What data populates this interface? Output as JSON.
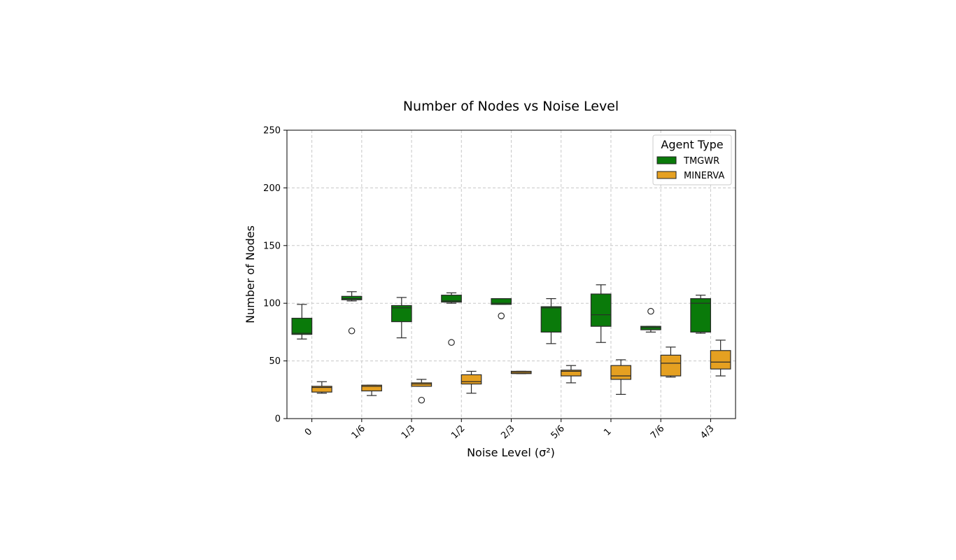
{
  "chart_data": {
    "type": "box",
    "title": "Number of Nodes vs Noise Level",
    "xlabel": "Noise Level (σ²)",
    "ylabel": "Number of Nodes",
    "ylim": [
      0,
      250
    ],
    "yticks": [
      0,
      50,
      100,
      150,
      200,
      250
    ],
    "grid": true,
    "legend": {
      "title": "Agent Type",
      "placement": "top-right"
    },
    "categories": [
      "0",
      "1/6",
      "1/3",
      "1/2",
      "2/3",
      "5/6",
      "1",
      "7/6",
      "4/3"
    ],
    "series": [
      {
        "name": "TMGWR",
        "color": "#0a7a0a",
        "boxes": [
          {
            "whisker_low": 69,
            "q1": 73,
            "median": 74,
            "q3": 87,
            "whisker_high": 99,
            "outliers": []
          },
          {
            "whisker_low": 102,
            "q1": 103,
            "median": 104,
            "q3": 106,
            "whisker_high": 110,
            "outliers": [
              76
            ]
          },
          {
            "whisker_low": 70,
            "q1": 84,
            "median": 96,
            "q3": 98,
            "whisker_high": 105,
            "outliers": []
          },
          {
            "whisker_low": 100,
            "q1": 101,
            "median": 102,
            "q3": 107,
            "whisker_high": 109,
            "outliers": [
              66
            ]
          },
          {
            "whisker_low": 99,
            "q1": 99,
            "median": 100,
            "q3": 104,
            "whisker_high": 104,
            "outliers": [
              89
            ]
          },
          {
            "whisker_low": 65,
            "q1": 75,
            "median": 96,
            "q3": 97,
            "whisker_high": 104,
            "outliers": []
          },
          {
            "whisker_low": 66,
            "q1": 80,
            "median": 90,
            "q3": 108,
            "whisker_high": 116,
            "outliers": []
          },
          {
            "whisker_low": 75,
            "q1": 77,
            "median": 79,
            "q3": 80,
            "whisker_high": 80,
            "outliers": [
              93
            ]
          },
          {
            "whisker_low": 74,
            "q1": 75,
            "median": 100,
            "q3": 104,
            "whisker_high": 107,
            "outliers": []
          }
        ]
      },
      {
        "name": "MINERVA",
        "color": "#e5a021",
        "boxes": [
          {
            "whisker_low": 22,
            "q1": 23,
            "median": 27,
            "q3": 28,
            "whisker_high": 32,
            "outliers": []
          },
          {
            "whisker_low": 20,
            "q1": 24,
            "median": 28,
            "q3": 29,
            "whisker_high": 29,
            "outliers": []
          },
          {
            "whisker_low": 28,
            "q1": 28,
            "median": 30,
            "q3": 31,
            "whisker_high": 34,
            "outliers": [
              16
            ]
          },
          {
            "whisker_low": 22,
            "q1": 30,
            "median": 32,
            "q3": 38,
            "whisker_high": 41,
            "outliers": []
          },
          {
            "whisker_low": 39,
            "q1": 39,
            "median": 40,
            "q3": 41,
            "whisker_high": 41,
            "outliers": []
          },
          {
            "whisker_low": 31,
            "q1": 37,
            "median": 41,
            "q3": 42,
            "whisker_high": 46,
            "outliers": []
          },
          {
            "whisker_low": 21,
            "q1": 34,
            "median": 37,
            "q3": 46,
            "whisker_high": 51,
            "outliers": []
          },
          {
            "whisker_low": 36,
            "q1": 37,
            "median": 48,
            "q3": 55,
            "whisker_high": 62,
            "outliers": []
          },
          {
            "whisker_low": 37,
            "q1": 43,
            "median": 49,
            "q3": 59,
            "whisker_high": 68,
            "outliers": []
          }
        ]
      }
    ]
  }
}
